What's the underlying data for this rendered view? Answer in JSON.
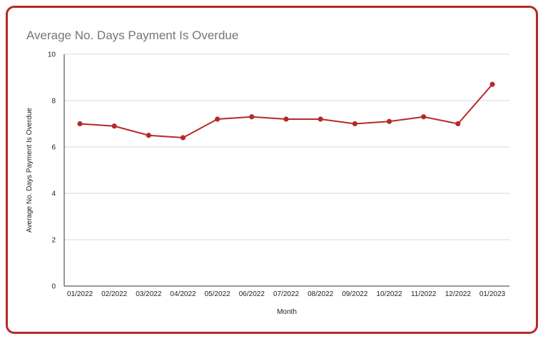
{
  "chart_data": {
    "type": "line",
    "title": "Average No. Days Payment Is Overdue",
    "xlabel": "Month",
    "ylabel": "Average No. Days Payment Is Overdue",
    "categories": [
      "01/2022",
      "02/2022",
      "03/2022",
      "04/2022",
      "05/2022",
      "06/2022",
      "07/2022",
      "08/2022",
      "09/2022",
      "10/2022",
      "11/2022",
      "12/2022",
      "01/2023"
    ],
    "series": [
      {
        "values": [
          7.0,
          6.9,
          6.5,
          6.4,
          7.2,
          7.3,
          7.2,
          7.2,
          7.0,
          7.1,
          7.3,
          7.0,
          8.7
        ]
      }
    ],
    "ylim": [
      0,
      10
    ],
    "yticks": [
      0,
      2,
      4,
      6,
      8,
      10
    ],
    "grid": true,
    "legend": "none",
    "color": "#b52a2a",
    "border_color": "#b52a2a"
  }
}
